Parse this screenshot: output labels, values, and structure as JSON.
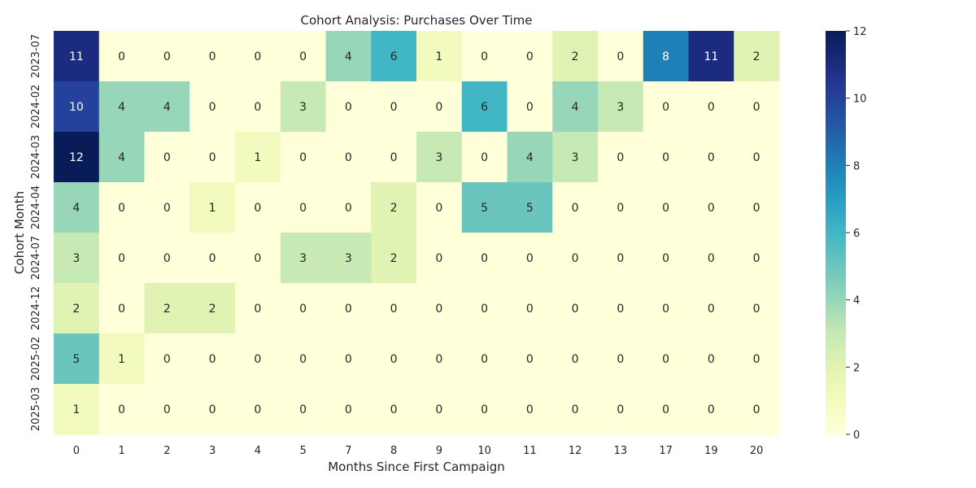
{
  "chart_data": {
    "type": "heatmap",
    "title": "Cohort Analysis: Purchases Over Time",
    "xlabel": "Months Since First Campaign",
    "ylabel": "Cohort Month",
    "x_categories": [
      "0",
      "1",
      "2",
      "3",
      "4",
      "5",
      "7",
      "8",
      "9",
      "10",
      "11",
      "12",
      "13",
      "17",
      "19",
      "20"
    ],
    "y_categories": [
      "2023-07",
      "2024-02",
      "2024-03",
      "2024-04",
      "2024-07",
      "2024-12",
      "2025-02",
      "2025-03"
    ],
    "values": [
      [
        11,
        0,
        0,
        0,
        0,
        0,
        4,
        6,
        1,
        0,
        0,
        2,
        0,
        8,
        11,
        2
      ],
      [
        10,
        4,
        4,
        0,
        0,
        3,
        0,
        0,
        0,
        6,
        0,
        4,
        3,
        0,
        0,
        0
      ],
      [
        12,
        4,
        0,
        0,
        1,
        0,
        0,
        0,
        3,
        0,
        4,
        3,
        0,
        0,
        0,
        0
      ],
      [
        4,
        0,
        0,
        1,
        0,
        0,
        0,
        2,
        0,
        5,
        5,
        0,
        0,
        0,
        0,
        0
      ],
      [
        3,
        0,
        0,
        0,
        0,
        3,
        3,
        2,
        0,
        0,
        0,
        0,
        0,
        0,
        0,
        0
      ],
      [
        2,
        0,
        2,
        2,
        0,
        0,
        0,
        0,
        0,
        0,
        0,
        0,
        0,
        0,
        0,
        0
      ],
      [
        5,
        1,
        0,
        0,
        0,
        0,
        0,
        0,
        0,
        0,
        0,
        0,
        0,
        0,
        0,
        0
      ],
      [
        1,
        0,
        0,
        0,
        0,
        0,
        0,
        0,
        0,
        0,
        0,
        0,
        0,
        0,
        0,
        0
      ]
    ],
    "colormap": "YlGnBu",
    "vmin": 0,
    "vmax": 12,
    "colorbar_ticks": [
      "0",
      "2",
      "4",
      "6",
      "8",
      "10",
      "12"
    ],
    "grid": false,
    "legend": "colorbar-right"
  }
}
